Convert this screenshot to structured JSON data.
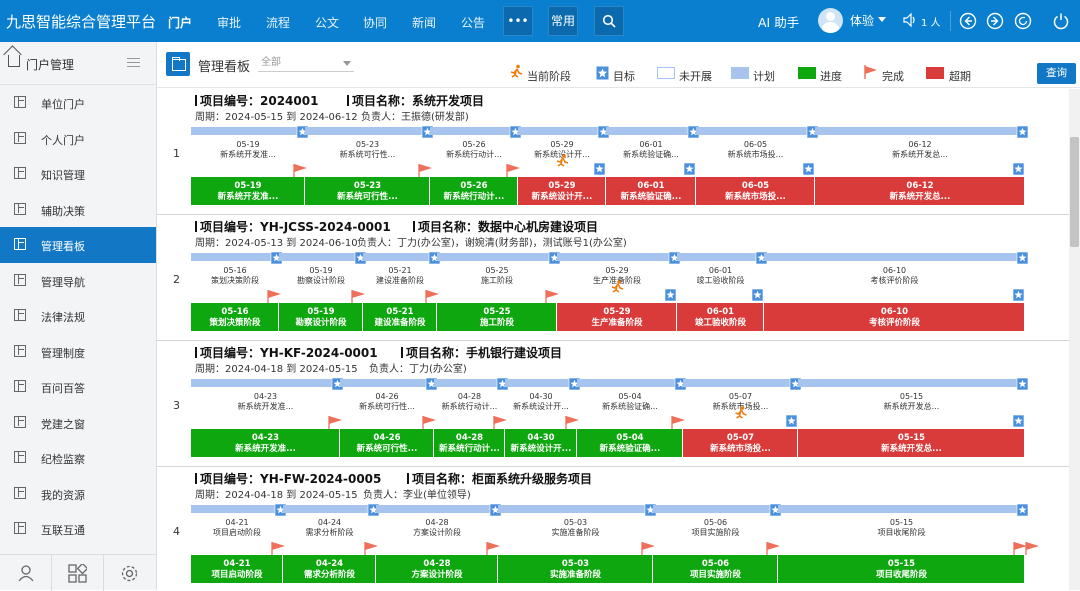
{
  "topbar": {
    "brand": "九思智能综合管理平台",
    "nav": [
      "门户",
      "审批",
      "流程",
      "公文",
      "协同",
      "新闻",
      "公告"
    ],
    "more": "•••",
    "common": "常用",
    "ai": "AI 助手",
    "user": "体验",
    "online": "1 人",
    "colors": {
      "bar": "#0a7fd0"
    }
  },
  "sidebar": {
    "header": "门户管理",
    "items": [
      "单位门户",
      "个人门户",
      "知识管理",
      "辅助决策",
      "管理看板",
      "管理导航",
      "法律法规",
      "管理制度",
      "百问百答",
      "党建之窗",
      "纪检监察",
      "我的资源",
      "互联互通"
    ],
    "active": "管理看板"
  },
  "header": {
    "title": "管理看板",
    "select_value": "全部",
    "query": "查询",
    "legend": [
      "当前阶段",
      "目标",
      "未开展",
      "计划",
      "进度",
      "完成",
      "超期"
    ]
  },
  "colors": {
    "plan": "#a7c4ee",
    "progress": "#0fa70f",
    "overdue": "#d93a3a",
    "done_flag": "#ee6f5a",
    "target": "#4a90dd",
    "current": "#f07c0c"
  },
  "projects": [
    {
      "num": "1",
      "code": "项目编号：2024001",
      "name": "项目名称：系统开发项目",
      "period": "周期：2024-05-15 到 2024-06-12",
      "owner": "负责人：王振德(研发部)",
      "plan": [
        [
          "05-19",
          "新系统开发准..."
        ],
        [
          "05-23",
          "新系统可行性..."
        ],
        [
          "05-26",
          "新系统行动计..."
        ],
        [
          "05-29",
          "新系统设计开..."
        ],
        [
          "06-01",
          "新系统验证确..."
        ],
        [
          "06-05",
          "新系统市场投..."
        ],
        [
          "06-12",
          "新系统开发总..."
        ]
      ],
      "actual": [
        [
          "05-19",
          "新系统开发准..."
        ],
        [
          "05-23",
          "新系统可行性..."
        ],
        [
          "05-26",
          "新系统行动计..."
        ],
        [
          "05-29",
          "新系统设计开..."
        ],
        [
          "06-01",
          "新系统验证确..."
        ],
        [
          "06-05",
          "新系统市场投..."
        ],
        [
          "06-12",
          "新系统开发总..."
        ]
      ],
      "status": [
        "done",
        "done",
        "done",
        "over",
        "over",
        "over",
        "over"
      ]
    },
    {
      "num": "2",
      "code": "项目编号：YH-JCSS-2024-0001",
      "name": "项目名称：数据中心机房建设项目",
      "period": "周期：2024-05-13 到 2024-06-10",
      "owner": "负责人：丁力(办公室)，谢婉清(财务部)，测试账号1(办公室)",
      "plan": [
        [
          "05-16",
          "策划决策阶段"
        ],
        [
          "05-19",
          "勘察设计阶段"
        ],
        [
          "05-21",
          "建设准备阶段"
        ],
        [
          "05-25",
          "施工阶段"
        ],
        [
          "05-29",
          "生产准备阶段"
        ],
        [
          "06-01",
          "竣工验收阶段"
        ],
        [
          "06-10",
          "考核评价阶段"
        ]
      ],
      "actual": [
        [
          "05-16",
          "策划决策阶段"
        ],
        [
          "05-19",
          "勘察设计阶段"
        ],
        [
          "05-21",
          "建设准备阶段"
        ],
        [
          "05-25",
          "施工阶段"
        ],
        [
          "05-29",
          "生产准备阶段"
        ],
        [
          "06-01",
          "竣工验收阶段"
        ],
        [
          "06-10",
          "考核评价阶段"
        ]
      ],
      "status": [
        "done",
        "done",
        "done",
        "done",
        "over",
        "over",
        "over"
      ]
    },
    {
      "num": "3",
      "code": "项目编号：YH-KF-2024-0001",
      "name": "项目名称：手机银行建设项目",
      "period": "周期：2024-04-18 到 2024-05-15",
      "owner": "负责人：丁力(办公室)",
      "plan": [
        [
          "04-23",
          "新系统开发准..."
        ],
        [
          "04-26",
          "新系统可行性..."
        ],
        [
          "04-28",
          "新系统行动计..."
        ],
        [
          "04-30",
          "新系统设计开..."
        ],
        [
          "05-04",
          "新系统验证确..."
        ],
        [
          "05-07",
          "新系统市场投..."
        ],
        [
          "05-15",
          "新系统开发总..."
        ]
      ],
      "actual": [
        [
          "04-23",
          "新系统开发准..."
        ],
        [
          "04-26",
          "新系统可行性..."
        ],
        [
          "04-28",
          "新系统行动计..."
        ],
        [
          "04-30",
          "新系统设计开..."
        ],
        [
          "05-04",
          "新系统验证确..."
        ],
        [
          "05-07",
          "新系统市场投..."
        ],
        [
          "05-15",
          "新系统开发总..."
        ]
      ],
      "status": [
        "done",
        "done",
        "done",
        "done",
        "done",
        "over",
        "over"
      ]
    },
    {
      "num": "4",
      "code": "项目编号：YH-FW-2024-0005",
      "name": "项目名称：柜面系统升级服务项目",
      "period": "周期：2024-04-18 到 2024-05-15",
      "owner": "负责人：李业(单位领导)",
      "plan": [
        [
          "04-21",
          "项目启动阶段"
        ],
        [
          "04-24",
          "需求分析阶段"
        ],
        [
          "04-28",
          "方案设计阶段"
        ],
        [
          "05-03",
          "实施准备阶段"
        ],
        [
          "05-06",
          "项目实施阶段"
        ],
        [
          "05-15",
          "项目收尾阶段"
        ]
      ],
      "actual": [
        [
          "04-21",
          "项目启动阶段"
        ],
        [
          "04-24",
          "需求分析阶段"
        ],
        [
          "04-28",
          "方案设计阶段"
        ],
        [
          "05-03",
          "实施准备阶段"
        ],
        [
          "05-06",
          "项目实施阶段"
        ],
        [
          "05-15",
          "项目收尾阶段"
        ]
      ],
      "status": [
        "done",
        "done",
        "done",
        "done",
        "done",
        "done"
      ]
    }
  ]
}
